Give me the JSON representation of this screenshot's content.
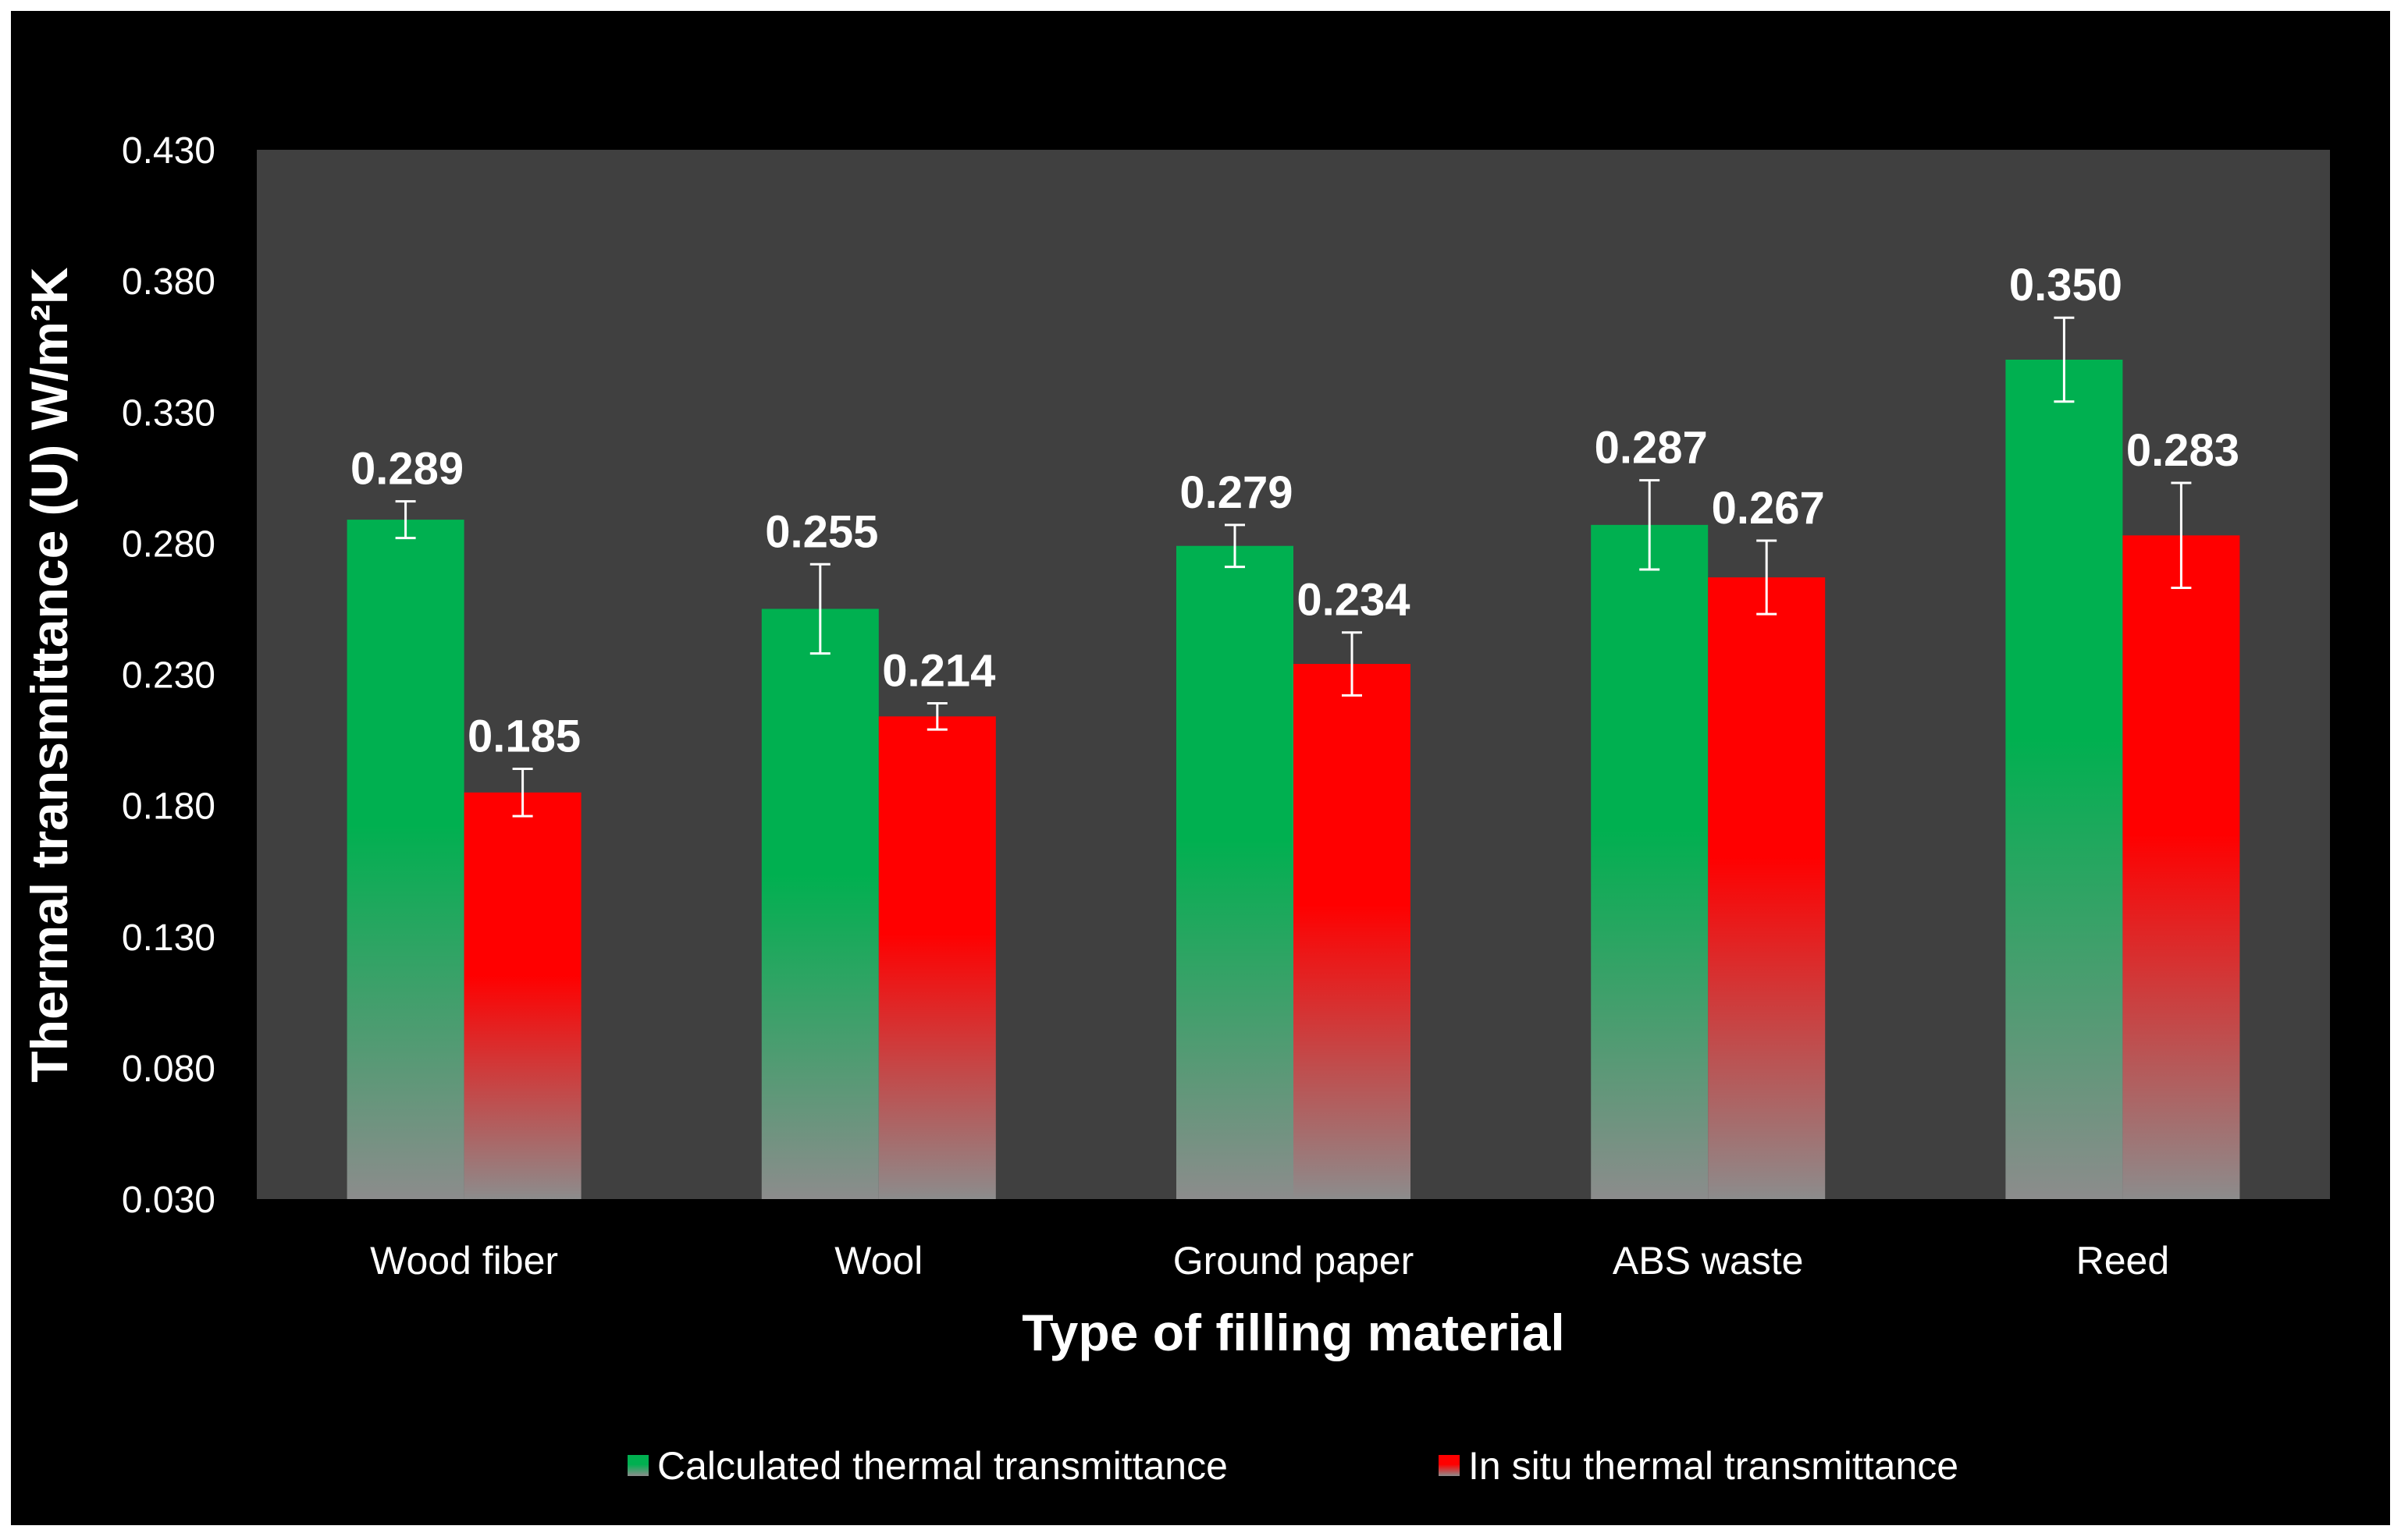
{
  "chart_data": {
    "type": "bar",
    "title": "",
    "xlabel": "Type of filling material",
    "ylabel": "Thermal transmittance (U) W/m²K",
    "categories": [
      "Wood fiber",
      "Wool",
      "Ground paper",
      "ABS waste",
      "Reed"
    ],
    "ylim": [
      0.03,
      0.43
    ],
    "yticks": [
      "0.430",
      "0.380",
      "0.330",
      "0.280",
      "0.230",
      "0.180",
      "0.130",
      "0.080",
      "0.030"
    ],
    "grid": false,
    "legend_position": "bottom",
    "series": [
      {
        "name": "Calculated  thermal transmittance",
        "color": "#00b050",
        "values": [
          0.289,
          0.255,
          0.279,
          0.287,
          0.35
        ],
        "value_labels": [
          "0.289",
          "0.255",
          "0.279",
          "0.287",
          "0.350"
        ],
        "error": [
          0.007,
          0.017,
          0.008,
          0.017,
          0.016
        ]
      },
      {
        "name": "In situ thermal transmittance",
        "color": "#ff0000",
        "values": [
          0.185,
          0.214,
          0.234,
          0.267,
          0.283
        ],
        "value_labels": [
          "0.185",
          "0.214",
          "0.234",
          "0.267",
          "0.283"
        ],
        "error": [
          0.009,
          0.005,
          0.012,
          0.014,
          0.02
        ]
      }
    ],
    "colors": {
      "page_background": "#000000",
      "plot_background": "#404040",
      "text": "#ffffff",
      "error_bar": "#ffffff"
    }
  }
}
